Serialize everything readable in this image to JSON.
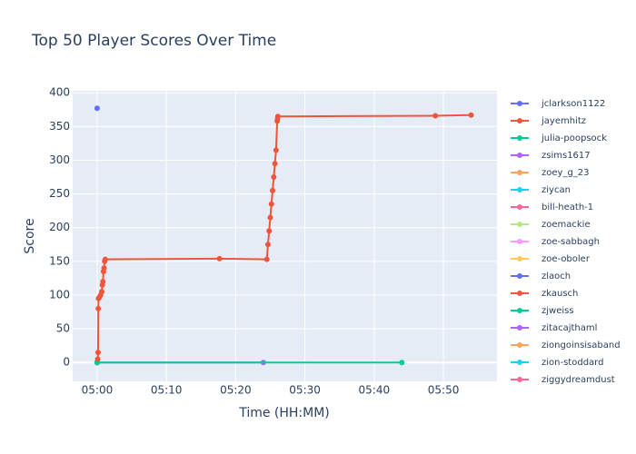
{
  "chart_data": {
    "type": "line",
    "title": "Top 50 Player Scores Over Time",
    "x_label": "Time (HH:MM)",
    "y_label": "Score",
    "xlim": [
      "04:56:28",
      "05:57:44"
    ],
    "xticks": [
      "05:00",
      "05:10",
      "05:20",
      "05:30",
      "05:40",
      "05:50"
    ],
    "ylim": [
      -28,
      403
    ],
    "yticks": [
      0,
      50,
      100,
      150,
      200,
      250,
      300,
      350,
      400
    ],
    "grid": true,
    "series": [
      {
        "name": "jclarkson1122",
        "color": "#636efa",
        "x": [
          "05:00:00"
        ],
        "values": [
          377
        ]
      },
      {
        "name": "jayemhitz",
        "color": "#EF553B",
        "x": [
          "05:00:05",
          "05:00:08",
          "05:00:10",
          "05:00:12",
          "05:00:20",
          "05:00:30",
          "05:00:40",
          "05:00:45",
          "05:00:50",
          "05:00:55",
          "05:01:00",
          "05:01:05",
          "05:01:10",
          "05:17:40",
          "05:24:30",
          "05:24:40",
          "05:24:50",
          "05:25:00",
          "05:25:10",
          "05:25:20",
          "05:25:30",
          "05:25:40",
          "05:25:50",
          "05:26:00",
          "05:26:03",
          "05:26:06",
          "05:48:50",
          "05:54:00"
        ],
        "values": [
          5,
          15,
          80,
          95,
          97,
          100,
          105,
          115,
          120,
          135,
          140,
          150,
          153,
          154,
          153,
          175,
          195,
          215,
          235,
          255,
          275,
          295,
          315,
          358,
          362,
          365,
          366,
          367
        ]
      },
      {
        "name": "julia-poopsock",
        "color": "#00cc96",
        "x": [
          "05:00:00",
          "05:44:00"
        ],
        "values": [
          0,
          0
        ]
      },
      {
        "name": "zsims1617",
        "color": "#ab63fa",
        "x": [
          "05:00:00",
          "05:24:00"
        ],
        "values": [
          0,
          0
        ]
      },
      {
        "name": "zoey_g_23",
        "color": "#FFA15A",
        "x": [
          "05:00:00"
        ],
        "values": [
          0
        ]
      },
      {
        "name": "ziycan",
        "color": "#19d3f3",
        "x": [
          "05:00:00"
        ],
        "values": [
          0
        ]
      },
      {
        "name": "bill-heath-1",
        "color": "#FF6692",
        "x": [
          "05:00:00"
        ],
        "values": [
          0
        ]
      },
      {
        "name": "zoemackie",
        "color": "#B6E880",
        "x": [
          "05:00:00"
        ],
        "values": [
          0
        ]
      },
      {
        "name": "zoe-sabbagh",
        "color": "#FF97FF",
        "x": [
          "05:00:00"
        ],
        "values": [
          0
        ]
      },
      {
        "name": "zoe-oboler",
        "color": "#FECB52",
        "x": [
          "05:00:00"
        ],
        "values": [
          0
        ]
      },
      {
        "name": "zlaoch",
        "color": "#636efa",
        "x": [
          "05:00:00"
        ],
        "values": [
          0
        ]
      },
      {
        "name": "zkausch",
        "color": "#EF553B",
        "x": [
          "05:00:00"
        ],
        "values": [
          0
        ]
      },
      {
        "name": "zjweiss",
        "color": "#00cc96",
        "x": [
          "05:00:00"
        ],
        "values": [
          0
        ]
      },
      {
        "name": "zitacajthaml",
        "color": "#ab63fa",
        "x": [
          "05:00:00"
        ],
        "values": [
          0
        ]
      },
      {
        "name": "ziongoinsisaband",
        "color": "#FFA15A",
        "x": [
          "05:00:00"
        ],
        "values": [
          0
        ]
      },
      {
        "name": "zion-stoddard",
        "color": "#19d3f3",
        "x": [
          "05:00:00"
        ],
        "values": [
          0
        ]
      },
      {
        "name": "ziggydreamdust",
        "color": "#FF6692",
        "x": [
          "05:00:00"
        ],
        "values": [
          0
        ]
      }
    ]
  }
}
